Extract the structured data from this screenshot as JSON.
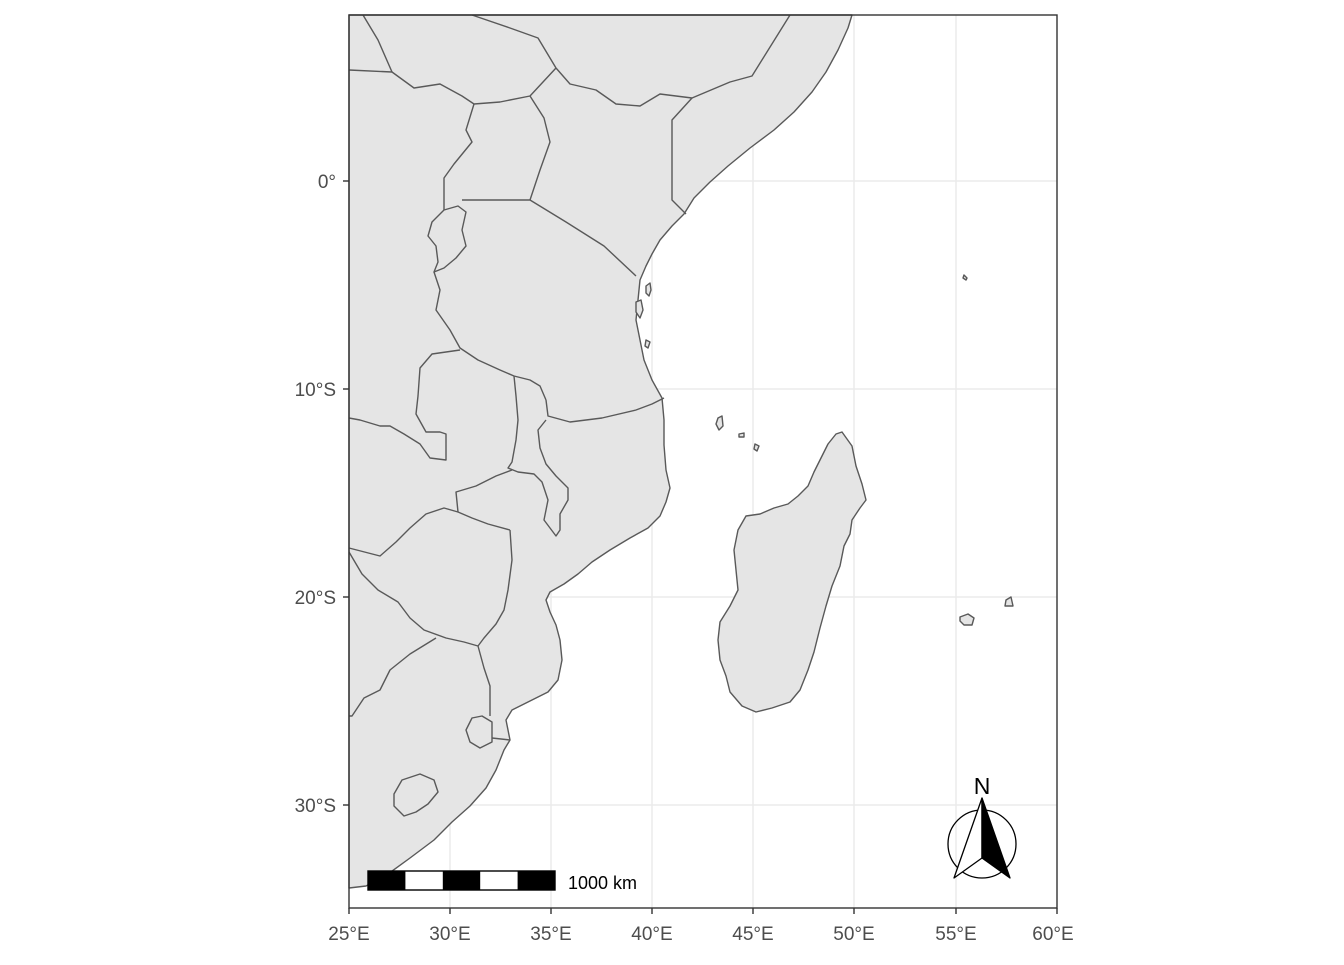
{
  "map": {
    "x_axis": {
      "ticks": [
        "25°E",
        "30°E",
        "35°E",
        "40°E",
        "45°E",
        "50°E",
        "55°E",
        "60°E"
      ]
    },
    "y_axis": {
      "ticks": [
        "0°",
        "10°S",
        "20°S",
        "30°S"
      ]
    },
    "extent": {
      "lon": [
        25,
        60
      ],
      "lat": [
        -34.5,
        8.0
      ]
    },
    "scale_bar": {
      "label": "1000 km",
      "segments": 5
    },
    "north_arrow": {
      "label": "N"
    },
    "colors": {
      "land": "#e5e5e5",
      "border": "#595959",
      "grid": "#ebebeb",
      "panel_border": "#333333"
    }
  }
}
